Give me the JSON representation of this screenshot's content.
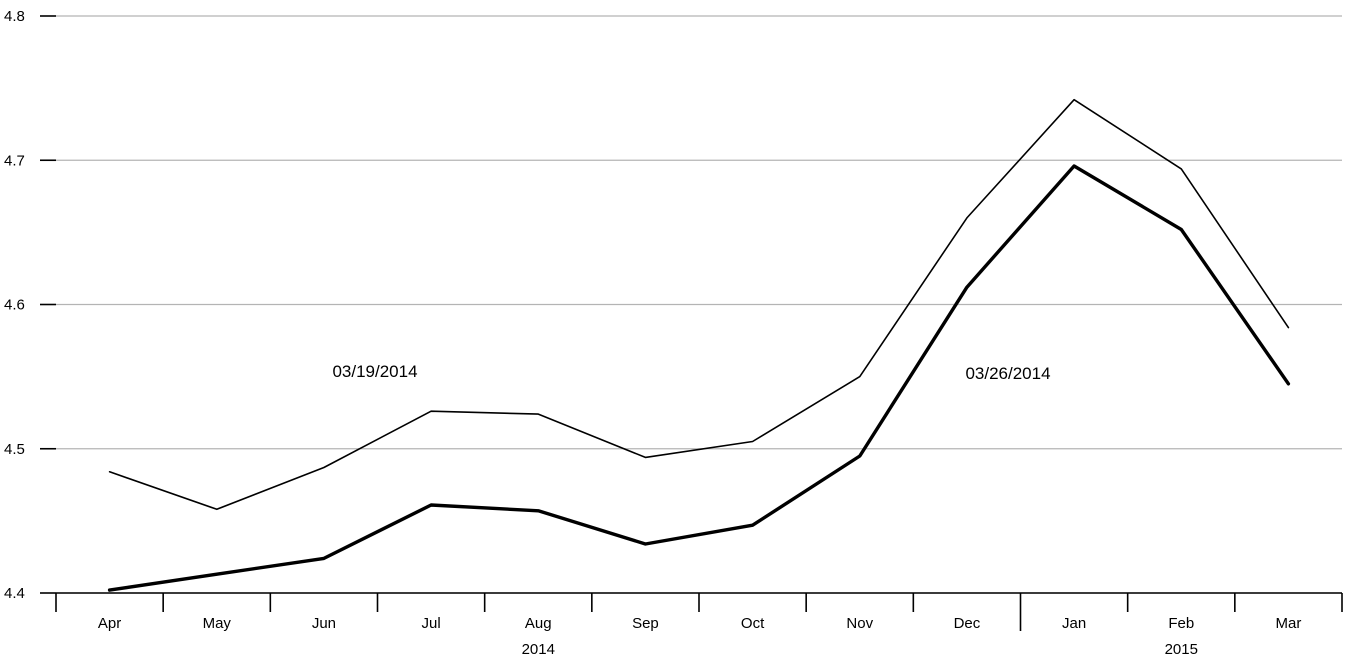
{
  "chart_data": {
    "type": "line",
    "categories": [
      "Apr",
      "May",
      "Jun",
      "Jul",
      "Aug",
      "Sep",
      "Oct",
      "Nov",
      "Dec",
      "Jan",
      "Feb",
      "Mar"
    ],
    "year_labels": [
      {
        "label": "2014",
        "category": "Aug"
      },
      {
        "label": "2015",
        "category": "Feb"
      }
    ],
    "yticks": [
      "4.4",
      "4.5",
      "4.6",
      "4.7",
      "4.8"
    ],
    "ylim": [
      4.4,
      4.8
    ],
    "grid": true,
    "title": "",
    "xlabel": "",
    "ylabel": "",
    "series": [
      {
        "name": "03/19/2014",
        "style": "thin",
        "color": "#000000",
        "values": [
          4.484,
          4.458,
          4.487,
          4.526,
          4.524,
          4.494,
          4.505,
          4.55,
          4.66,
          4.742,
          4.694,
          4.584
        ]
      },
      {
        "name": "03/26/2014",
        "style": "thick",
        "color": "#000000",
        "values": [
          4.402,
          4.413,
          4.424,
          4.461,
          4.457,
          4.434,
          4.447,
          4.495,
          4.612,
          4.696,
          4.652,
          4.545
        ]
      }
    ],
    "annotations": [
      {
        "text": "03/19/2014",
        "series": 0
      },
      {
        "text": "03/26/2014",
        "series": 1
      }
    ]
  }
}
